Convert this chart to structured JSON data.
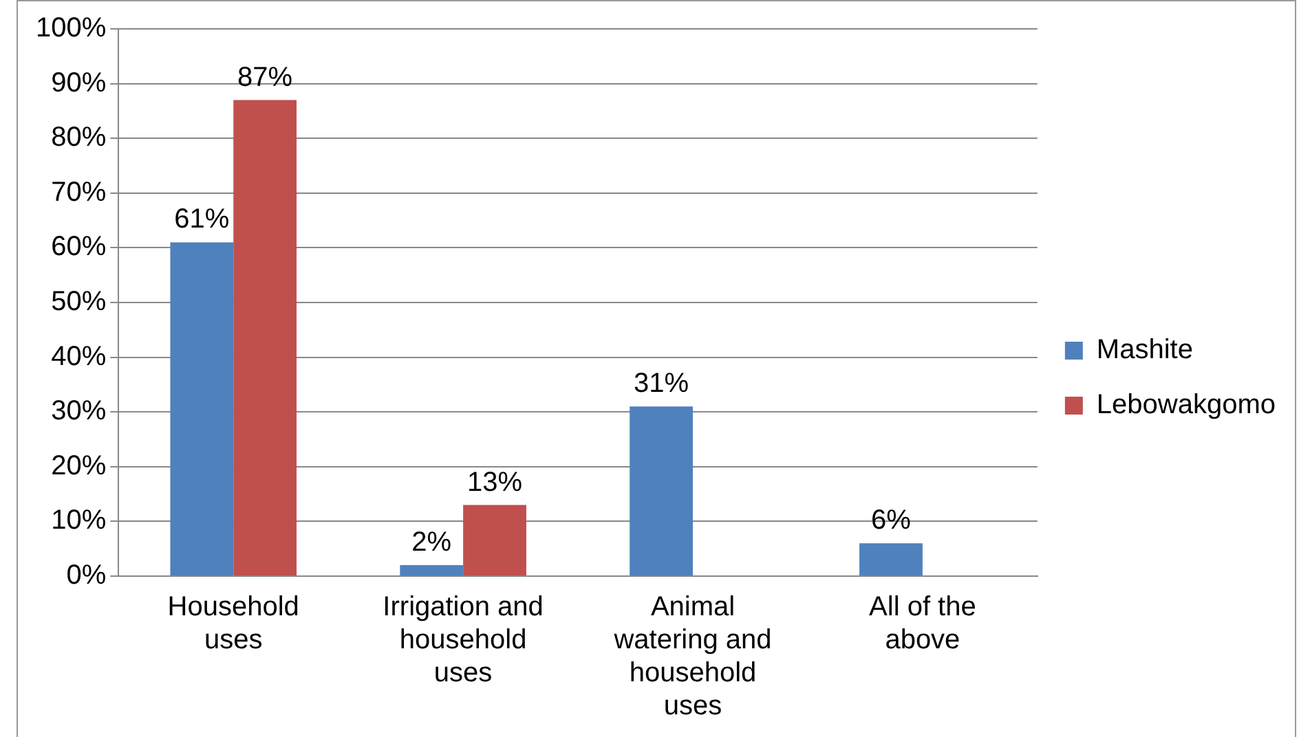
{
  "chart_data": {
    "type": "bar",
    "categories": [
      "Household uses",
      "Irrigation and household uses",
      "Animal watering and household uses",
      "All of the above"
    ],
    "series": [
      {
        "name": "Mashite",
        "color": "#4f81bd",
        "values": [
          61,
          2,
          31,
          6
        ],
        "value_labels": [
          "61%",
          "2%",
          "31%",
          "6%"
        ]
      },
      {
        "name": "Lebowakgomo",
        "color": "#c0504d",
        "values": [
          87,
          13,
          null,
          null
        ],
        "value_labels": [
          "87%",
          "13%",
          null,
          null
        ]
      }
    ],
    "ylim": [
      0,
      100
    ],
    "yticks": [
      {
        "value": 0,
        "label": "0%"
      },
      {
        "value": 10,
        "label": "10%"
      },
      {
        "value": 20,
        "label": "20%"
      },
      {
        "value": 30,
        "label": "30%"
      },
      {
        "value": 40,
        "label": "40%"
      },
      {
        "value": 50,
        "label": "50%"
      },
      {
        "value": 60,
        "label": "60%"
      },
      {
        "value": 70,
        "label": "70%"
      },
      {
        "value": 80,
        "label": "80%"
      },
      {
        "value": 90,
        "label": "90%"
      },
      {
        "value": 100,
        "label": "100%"
      }
    ],
    "grid": "y",
    "legend": "right"
  }
}
